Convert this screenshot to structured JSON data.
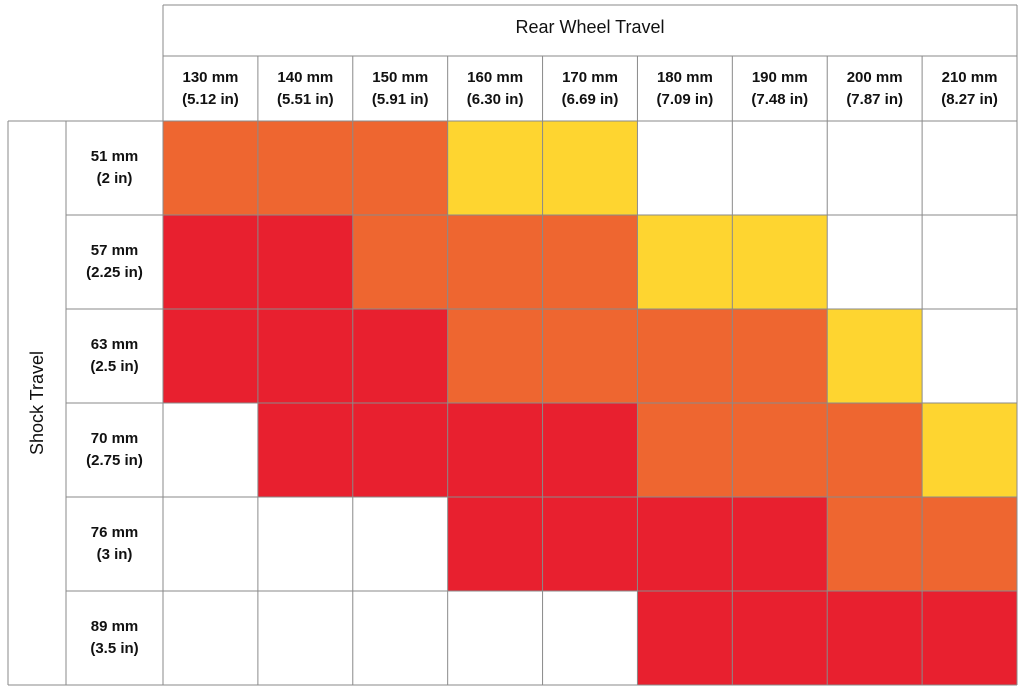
{
  "header": {
    "title": "Rear Wheel Travel",
    "row_title": "Shock Travel"
  },
  "columns": [
    {
      "mm": "130 mm",
      "in": "(5.12 in)"
    },
    {
      "mm": "140 mm",
      "in": "(5.51 in)"
    },
    {
      "mm": "150 mm",
      "in": "(5.91 in)"
    },
    {
      "mm": "160 mm",
      "in": "(6.30 in)"
    },
    {
      "mm": "170 mm",
      "in": "(6.69 in)"
    },
    {
      "mm": "180 mm",
      "in": "(7.09 in)"
    },
    {
      "mm": "190 mm",
      "in": "(7.48 in)"
    },
    {
      "mm": "200 mm",
      "in": "(7.87 in)"
    },
    {
      "mm": "210 mm",
      "in": "(8.27 in)"
    }
  ],
  "rows": [
    {
      "mm": "51 mm",
      "in": "(2 in)",
      "cells": [
        "#ee6630",
        "#ee6630",
        "#ee6630",
        "#fed530",
        "#fed530",
        "#ffffff",
        "#ffffff",
        "#ffffff",
        "#ffffff"
      ]
    },
    {
      "mm": "57 mm",
      "in": "(2.25 in)",
      "cells": [
        "#e8202f",
        "#e8202f",
        "#ee6630",
        "#ee6630",
        "#ee6630",
        "#fed530",
        "#fed530",
        "#ffffff",
        "#ffffff"
      ]
    },
    {
      "mm": "63 mm",
      "in": "(2.5 in)",
      "cells": [
        "#e8202f",
        "#e8202f",
        "#e8202f",
        "#ee6630",
        "#ee6630",
        "#ee6630",
        "#ee6630",
        "#fed530",
        "#ffffff"
      ]
    },
    {
      "mm": "70 mm",
      "in": "(2.75 in)",
      "cells": [
        "#ffffff",
        "#e8202f",
        "#e8202f",
        "#e8202f",
        "#e8202f",
        "#ee6630",
        "#ee6630",
        "#ee6630",
        "#fed530"
      ]
    },
    {
      "mm": "76 mm",
      "in": "(3 in)",
      "cells": [
        "#ffffff",
        "#ffffff",
        "#ffffff",
        "#e8202f",
        "#e8202f",
        "#e8202f",
        "#e8202f",
        "#ee6630",
        "#ee6630"
      ]
    },
    {
      "mm": "89 mm",
      "in": "(3.5 in)",
      "cells": [
        "#ffffff",
        "#ffffff",
        "#ffffff",
        "#ffffff",
        "#ffffff",
        "#e8202f",
        "#e8202f",
        "#e8202f",
        "#e8202f"
      ]
    }
  ]
}
